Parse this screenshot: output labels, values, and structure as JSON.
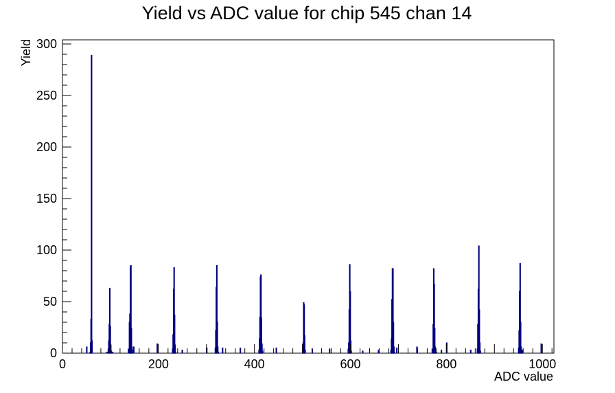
{
  "chart_data": {
    "type": "histogram",
    "title": "Yield vs ADC value for chip 545 chan 14",
    "xlabel": "ADC value",
    "ylabel": "Yield",
    "xlim": [
      0,
      1024
    ],
    "ylim": [
      0,
      304
    ],
    "x_ticks": [
      0,
      200,
      400,
      600,
      800,
      1000
    ],
    "y_ticks": [
      0,
      50,
      100,
      150,
      200,
      250,
      300
    ],
    "grid": false,
    "legend": "none",
    "line_color": "#000080",
    "bins": [
      {
        "x": 50,
        "y": 6
      },
      {
        "x": 57,
        "y": 1
      },
      {
        "x": 58,
        "y": 10
      },
      {
        "x": 59,
        "y": 33
      },
      {
        "x": 60,
        "y": 289
      },
      {
        "x": 61,
        "y": 12
      },
      {
        "x": 92,
        "y": 1
      },
      {
        "x": 95,
        "y": 4
      },
      {
        "x": 96,
        "y": 12
      },
      {
        "x": 97,
        "y": 28
      },
      {
        "x": 98,
        "y": 63
      },
      {
        "x": 99,
        "y": 26
      },
      {
        "x": 100,
        "y": 8
      },
      {
        "x": 101,
        "y": 2
      },
      {
        "x": 104,
        "y": 1
      },
      {
        "x": 137,
        "y": 4
      },
      {
        "x": 139,
        "y": 30
      },
      {
        "x": 140,
        "y": 38
      },
      {
        "x": 141,
        "y": 84
      },
      {
        "x": 142,
        "y": 85
      },
      {
        "x": 143,
        "y": 24
      },
      {
        "x": 144,
        "y": 6
      },
      {
        "x": 145,
        "y": 3
      },
      {
        "x": 148,
        "y": 6
      },
      {
        "x": 197,
        "y": 9
      },
      {
        "x": 229,
        "y": 4
      },
      {
        "x": 230,
        "y": 18
      },
      {
        "x": 231,
        "y": 62
      },
      {
        "x": 232,
        "y": 83
      },
      {
        "x": 233,
        "y": 37
      },
      {
        "x": 234,
        "y": 8
      },
      {
        "x": 235,
        "y": 1
      },
      {
        "x": 249,
        "y": 3
      },
      {
        "x": 300,
        "y": 5
      },
      {
        "x": 318,
        "y": 5
      },
      {
        "x": 319,
        "y": 22
      },
      {
        "x": 320,
        "y": 64
      },
      {
        "x": 321,
        "y": 85
      },
      {
        "x": 322,
        "y": 30
      },
      {
        "x": 323,
        "y": 6
      },
      {
        "x": 324,
        "y": 1
      },
      {
        "x": 333,
        "y": 5
      },
      {
        "x": 370,
        "y": 5
      },
      {
        "x": 409,
        "y": 3
      },
      {
        "x": 410,
        "y": 14
      },
      {
        "x": 411,
        "y": 35
      },
      {
        "x": 412,
        "y": 74
      },
      {
        "x": 413,
        "y": 76
      },
      {
        "x": 414,
        "y": 34
      },
      {
        "x": 415,
        "y": 9
      },
      {
        "x": 416,
        "y": 2
      },
      {
        "x": 445,
        "y": 5
      },
      {
        "x": 500,
        "y": 3
      },
      {
        "x": 501,
        "y": 10
      },
      {
        "x": 502,
        "y": 49
      },
      {
        "x": 503,
        "y": 47
      },
      {
        "x": 504,
        "y": 17
      },
      {
        "x": 505,
        "y": 3
      },
      {
        "x": 520,
        "y": 4
      },
      {
        "x": 556,
        "y": 4
      },
      {
        "x": 595,
        "y": 4
      },
      {
        "x": 596,
        "y": 10
      },
      {
        "x": 597,
        "y": 42
      },
      {
        "x": 598,
        "y": 86
      },
      {
        "x": 599,
        "y": 60
      },
      {
        "x": 600,
        "y": 12
      },
      {
        "x": 601,
        "y": 2
      },
      {
        "x": 625,
        "y": 2
      },
      {
        "x": 658,
        "y": 3
      },
      {
        "x": 684,
        "y": 3
      },
      {
        "x": 685,
        "y": 14
      },
      {
        "x": 686,
        "y": 52
      },
      {
        "x": 687,
        "y": 82
      },
      {
        "x": 688,
        "y": 82
      },
      {
        "x": 689,
        "y": 30
      },
      {
        "x": 690,
        "y": 6
      },
      {
        "x": 691,
        "y": 1
      },
      {
        "x": 696,
        "y": 5
      },
      {
        "x": 738,
        "y": 6
      },
      {
        "x": 770,
        "y": 4
      },
      {
        "x": 772,
        "y": 28
      },
      {
        "x": 773,
        "y": 82
      },
      {
        "x": 774,
        "y": 67
      },
      {
        "x": 775,
        "y": 24
      },
      {
        "x": 776,
        "y": 6
      },
      {
        "x": 777,
        "y": 1
      },
      {
        "x": 789,
        "y": 3
      },
      {
        "x": 800,
        "y": 10
      },
      {
        "x": 850,
        "y": 3
      },
      {
        "x": 864,
        "y": 4
      },
      {
        "x": 865,
        "y": 28
      },
      {
        "x": 866,
        "y": 62
      },
      {
        "x": 867,
        "y": 104
      },
      {
        "x": 868,
        "y": 42
      },
      {
        "x": 869,
        "y": 10
      },
      {
        "x": 870,
        "y": 2
      },
      {
        "x": 950,
        "y": 5
      },
      {
        "x": 951,
        "y": 22
      },
      {
        "x": 952,
        "y": 60
      },
      {
        "x": 953,
        "y": 87
      },
      {
        "x": 954,
        "y": 30
      },
      {
        "x": 955,
        "y": 6
      },
      {
        "x": 956,
        "y": 1
      },
      {
        "x": 958,
        "y": 3
      },
      {
        "x": 997,
        "y": 9
      }
    ]
  }
}
